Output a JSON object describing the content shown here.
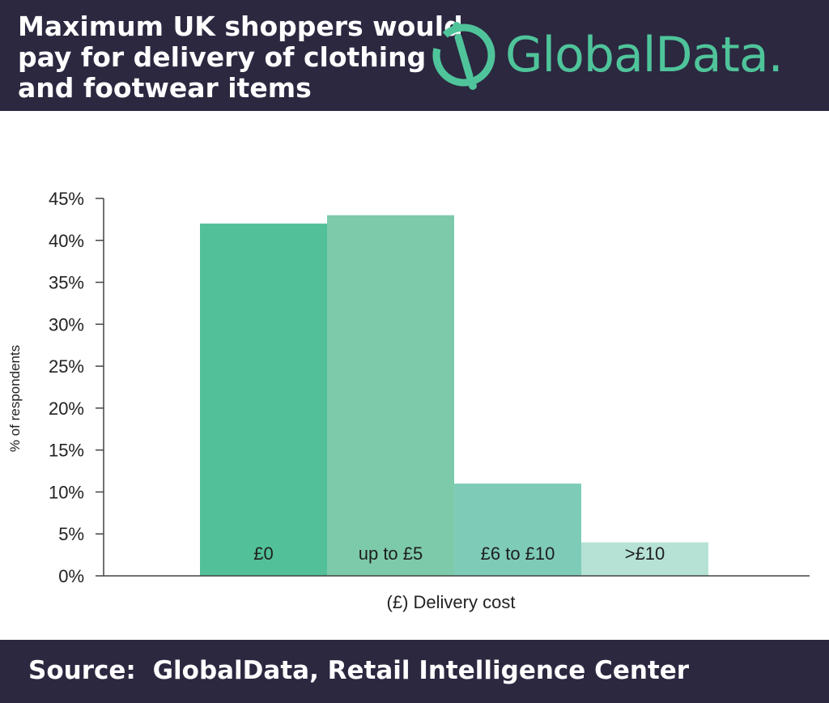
{
  "header": {
    "title_lines": [
      "Maximum UK shoppers would",
      "pay for delivery of clothing",
      "and footwear items"
    ],
    "logo_text": "GlobalData.",
    "logo_icon": "globaldata-logo-icon"
  },
  "footer": {
    "source_label": "Source:",
    "source_text": "GlobalData, Retail Intelligence Center"
  },
  "colors": {
    "header_bg": "#2b2840",
    "accent": "#4fc49a",
    "bars": [
      "#52c199",
      "#7dcaaa",
      "#7ecbb8",
      "#b6e2d5"
    ]
  },
  "chart_data": {
    "type": "bar",
    "categories": [
      "£0",
      "up to £5",
      "£6 to £10",
      ">£10"
    ],
    "values": [
      42,
      43,
      11,
      4
    ],
    "ylim": [
      0,
      45
    ],
    "yticks": [
      0,
      5,
      10,
      15,
      20,
      25,
      30,
      35,
      40,
      45
    ],
    "ytick_labels": [
      "0%",
      "5%",
      "10%",
      "15%",
      "20%",
      "25%",
      "30%",
      "35%",
      "40%",
      "45%"
    ],
    "xlabel": "(£) Delivery cost",
    "ylabel": "% of respondents",
    "grid": false,
    "legend": "none"
  }
}
